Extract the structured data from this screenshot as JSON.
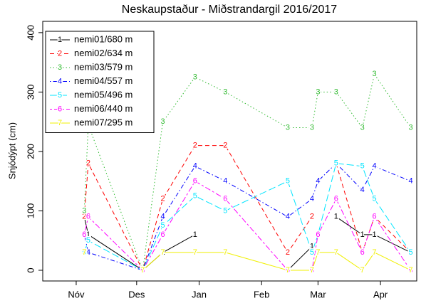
{
  "chart_data": {
    "type": "line",
    "title": "Neskaupstaður - Miðstrandargil 2016/2017",
    "y_label": "Snjódýpt (cm)",
    "x": [
      4,
      6,
      33,
      43,
      59,
      74,
      105,
      117,
      120,
      129,
      142,
      148,
      166
    ],
    "xlim": [
      -16.6,
      169
    ],
    "xticks": [
      {
        "value": 0,
        "label": "Nóv"
      },
      {
        "value": 30,
        "label": "Des"
      },
      {
        "value": 61,
        "label": "Jan"
      },
      {
        "value": 92,
        "label": "Feb"
      },
      {
        "value": 120,
        "label": "Mar"
      },
      {
        "value": 151,
        "label": "Apr"
      }
    ],
    "ylim": [
      -18,
      419
    ],
    "yticks": [
      0,
      100,
      200,
      300,
      400
    ],
    "legend": "top-left",
    "series": [
      {
        "name": "nemi01/680 m",
        "pch": "1",
        "color": "#000000",
        "dash": "",
        "values": [
          90,
          60,
          0,
          30,
          60,
          null,
          0,
          40,
          null,
          90,
          60,
          60,
          30
        ]
      },
      {
        "name": "nemi02/634 m",
        "pch": "2",
        "color": "#ff0000",
        "dash": "6 4",
        "values": [
          90,
          180,
          0,
          120,
          210,
          210,
          30,
          90,
          null,
          180,
          30,
          90,
          30
        ]
      },
      {
        "name": "nemi03/579 m",
        "pch": "3",
        "color": "#33bb33",
        "dash": "1.5 3",
        "values": [
          100,
          245,
          0,
          250,
          325,
          300,
          240,
          240,
          300,
          300,
          240,
          330,
          240
        ]
      },
      {
        "name": "nemi04/557 m",
        "pch": "4",
        "color": "#0000ff",
        "dash": "1.5 3 6 3",
        "values": [
          60,
          30,
          0,
          90,
          175,
          150,
          90,
          120,
          150,
          180,
          135,
          175,
          150
        ]
      },
      {
        "name": "nemi05/496 m",
        "pch": "5",
        "color": "#00e5ff",
        "dash": "10 4",
        "values": [
          30,
          50,
          0,
          75,
          125,
          100,
          150,
          30,
          60,
          180,
          175,
          120,
          30
        ]
      },
      {
        "name": "nemi06/440 m",
        "pch": "6",
        "color": "#ff00ff",
        "dash": "3 3 8 3",
        "values": [
          60,
          90,
          0,
          60,
          150,
          120,
          0,
          0,
          60,
          120,
          30,
          90,
          0
        ]
      },
      {
        "name": "nemi07/295 m",
        "pch": "7",
        "color": "#f0f000",
        "dash": "",
        "values": [
          30,
          null,
          0,
          30,
          30,
          30,
          0,
          0,
          30,
          30,
          0,
          30,
          0
        ]
      }
    ]
  }
}
